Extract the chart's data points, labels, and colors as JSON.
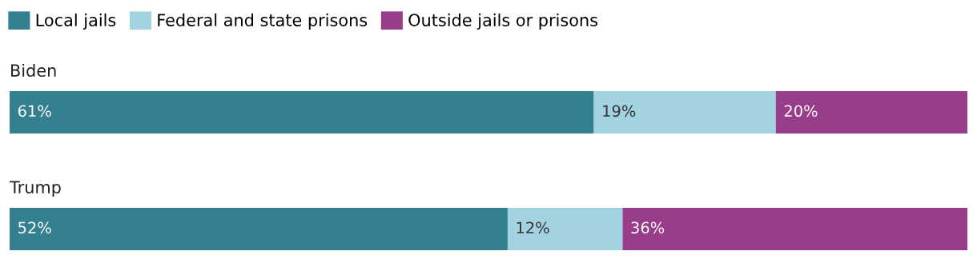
{
  "chart_data": {
    "type": "bar",
    "orientation": "horizontal",
    "stacked": true,
    "categories": [
      "Biden",
      "Trump"
    ],
    "series": [
      {
        "name": "Local jails",
        "color": "#35808f",
        "values": [
          61,
          52
        ],
        "value_labels": [
          "61%",
          "52%"
        ]
      },
      {
        "name": "Federal and state prisons",
        "color": "#a3d2e0",
        "values": [
          19,
          12
        ],
        "value_labels": [
          "19%",
          "12%"
        ]
      },
      {
        "name": "Outside jails or prisons",
        "color": "#993d8b",
        "values": [
          20,
          36
        ],
        "value_labels": [
          "20%",
          "36%"
        ]
      }
    ],
    "tick_labels": false,
    "legend": "top left"
  }
}
